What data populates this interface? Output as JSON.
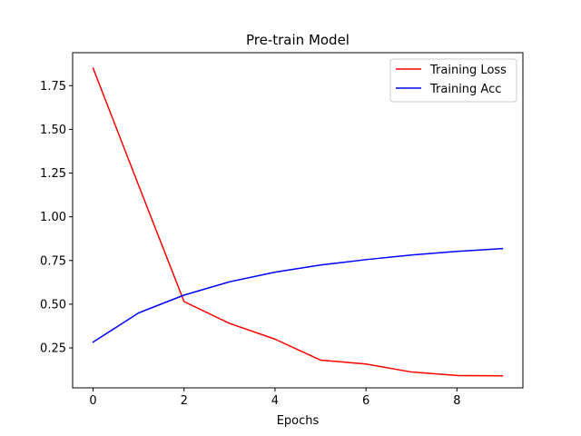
{
  "chart_data": {
    "type": "line",
    "title": "Pre-train Model",
    "xlabel": "Epochs",
    "ylabel": "",
    "x": [
      0,
      1,
      2,
      3,
      4,
      5,
      6,
      7,
      8,
      9
    ],
    "series": [
      {
        "name": "Training Loss",
        "color": "#ff0000",
        "values": [
          1.85,
          1.18,
          0.515,
          0.39,
          0.3,
          0.18,
          0.158,
          0.112,
          0.092,
          0.09
        ]
      },
      {
        "name": "Training Acc",
        "color": "#0000ff",
        "values": [
          0.283,
          0.45,
          0.552,
          0.628,
          0.683,
          0.724,
          0.755,
          0.781,
          0.802,
          0.818
        ]
      }
    ],
    "xlim": [
      -0.45,
      9.45
    ],
    "ylim": [
      0.0214,
      1.9386
    ],
    "xticks": [
      0,
      2,
      4,
      6,
      8
    ],
    "xtick_labels": [
      "0",
      "2",
      "4",
      "6",
      "8"
    ],
    "yticks": [
      0.25,
      0.5,
      0.75,
      1.0,
      1.25,
      1.5,
      1.75
    ],
    "ytick_labels": [
      "0.25",
      "0.50",
      "0.75",
      "1.00",
      "1.25",
      "1.50",
      "1.75"
    ],
    "grid": false,
    "legend_position": "upper right"
  }
}
